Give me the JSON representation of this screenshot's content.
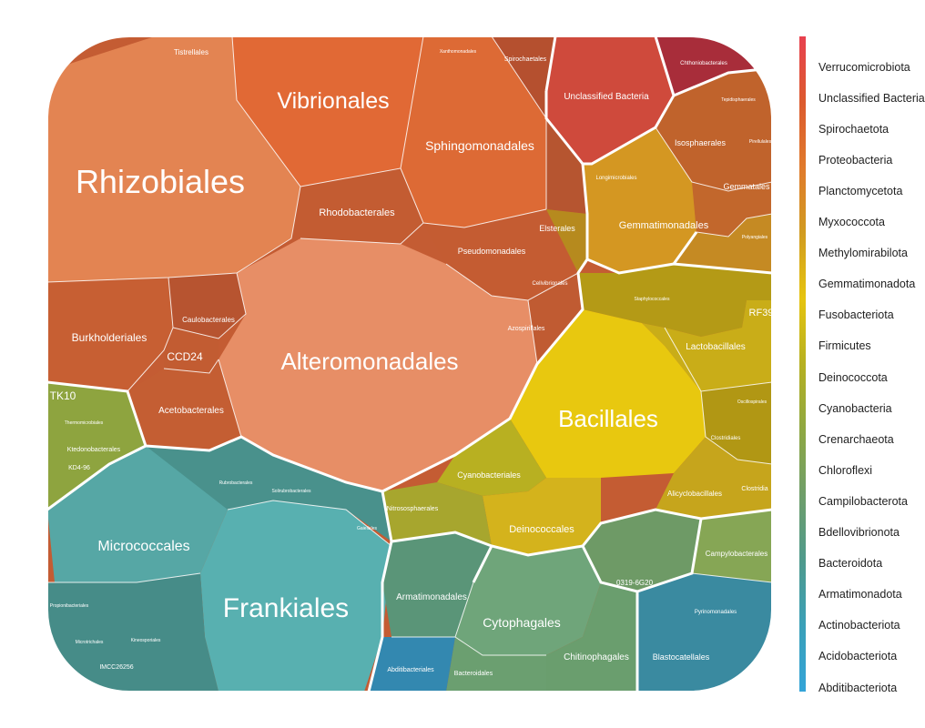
{
  "chart_data": {
    "type": "voronoi-treemap",
    "legend": {
      "placement": "right",
      "gradient": [
        "#e8414f",
        "#dc5a2e",
        "#e07a2c",
        "#d19b20",
        "#e6c40f",
        "#b6b021",
        "#8fa842",
        "#6f9e6a",
        "#4f9a8c",
        "#3aa0b8",
        "#34a4d8"
      ],
      "items": [
        "Verrucomicrobiota",
        "Unclassified Bacteria",
        "Spirochaetota",
        "Proteobacteria",
        "Planctomycetota",
        "Myxococcota",
        "Methylomirabilota",
        "Gemmatimonadota",
        "Fusobacteriota",
        "Firmicutes",
        "Deinococcota",
        "Cyanobacteria",
        "Crenarchaeota",
        "Chloroflexi",
        "Campilobacterota",
        "Bdellovibrionota",
        "Bacteroidota",
        "Armatimonadota",
        "Actinobacteriota",
        "Acidobacteriota",
        "Abditibacteriota"
      ]
    },
    "cells": [
      {
        "label": "Rhizobiales",
        "color": "#e38452"
      },
      {
        "label": "Vibrionales",
        "color": "#e16935"
      },
      {
        "label": "Sphingomonadales",
        "color": "#dd6a35"
      },
      {
        "label": "Rhodobacterales",
        "color": "#c35c32"
      },
      {
        "label": "Pseudomonadales",
        "color": "#c45c32"
      },
      {
        "label": "Alteromonadales",
        "color": "#e78e66"
      },
      {
        "label": "Burkholderiales",
        "color": "#c75f33"
      },
      {
        "label": "Caulobacterales",
        "color": "#b75430"
      },
      {
        "label": "CCD24",
        "color": "#c25c32"
      },
      {
        "label": "Acetobacterales",
        "color": "#c45e33"
      },
      {
        "label": "Tistrellales",
        "color": "#b85a30"
      },
      {
        "label": "Xanthomonadales",
        "color": "#bb5531"
      },
      {
        "label": "Spirochaetales",
        "color": "#b5502f"
      },
      {
        "label": "Unclassified Bacteria",
        "color": "#cf4a3c"
      },
      {
        "label": "Chthoniobacterales",
        "color": "#a82d3a"
      },
      {
        "label": "Elsterales",
        "color": "#b65530"
      },
      {
        "label": "Cellvibrionales",
        "color": "#b95630"
      },
      {
        "label": "Azospirillales",
        "color": "#c05b32"
      },
      {
        "label": "Isosphaerales",
        "color": "#c0632c"
      },
      {
        "label": "Tepidisphaerales",
        "color": "#b85c2b"
      },
      {
        "label": "Pirellulales",
        "color": "#c06a2c"
      },
      {
        "label": "Gemmatales",
        "color": "#c2672c"
      },
      {
        "label": "Gemmatimonadales",
        "color": "#d49722"
      },
      {
        "label": "Longimicrobiales",
        "color": "#b68a1e"
      },
      {
        "label": "Polyangiales",
        "color": "#c58a23"
      },
      {
        "label": "Bacillales",
        "color": "#e8c80f"
      },
      {
        "label": "Lactobacillales",
        "color": "#c9ad18"
      },
      {
        "label": "RF39",
        "color": "#b9a21a"
      },
      {
        "label": "Staphylococcales",
        "color": "#b49a16"
      },
      {
        "label": "Clostridiales",
        "color": "#b19714"
      },
      {
        "label": "Oscillospirales",
        "color": "#b4991a"
      },
      {
        "label": "Alicyclobacillales",
        "color": "#c6a51c"
      },
      {
        "label": "Clostridia",
        "color": "#b29b1a"
      },
      {
        "label": "Cyanobacteriales",
        "color": "#b8b021"
      },
      {
        "label": "Deinococcales",
        "color": "#d4b31c"
      },
      {
        "label": "Nitrososphaerales",
        "color": "#a7a62e"
      },
      {
        "label": "TK10",
        "color": "#8ea43f"
      },
      {
        "label": "Thermomicrobiales",
        "color": "#8e9f3f"
      },
      {
        "label": "Ktedonobacterales",
        "color": "#8a9c3d"
      },
      {
        "label": "KD4-96",
        "color": "#879a3c"
      },
      {
        "label": "Campylobacterales",
        "color": "#86a655"
      },
      {
        "label": "Micrococcales",
        "color": "#56a7a5"
      },
      {
        "label": "Frankiales",
        "color": "#58b0b0"
      },
      {
        "label": "Propionibacteriales",
        "color": "#4b9692"
      },
      {
        "label": "Microtrichales",
        "color": "#468c88"
      },
      {
        "label": "IMCC26256",
        "color": "#4a908c"
      },
      {
        "label": "Kineosporiales",
        "color": "#478f8b"
      },
      {
        "label": "Gaiellales",
        "color": "#4a918c"
      },
      {
        "label": "Solirubrobacterales",
        "color": "#49918c"
      },
      {
        "label": "Rubrobacterales",
        "color": "#4a908b"
      },
      {
        "label": "Armatimonadales",
        "color": "#5a9578"
      },
      {
        "label": "Cytophagales",
        "color": "#6fa57a"
      },
      {
        "label": "Chitinophagales",
        "color": "#6a9e6e"
      },
      {
        "label": "Bacteroidales",
        "color": "#6b9f70"
      },
      {
        "label": "0319-6G20",
        "color": "#6e9a66"
      },
      {
        "label": "Blastocatellales",
        "color": "#3b8b9e"
      },
      {
        "label": "Pyrinomonadales",
        "color": "#3a8aa0"
      },
      {
        "label": "Abditibacteriales",
        "color": "#3388b0"
      }
    ]
  }
}
